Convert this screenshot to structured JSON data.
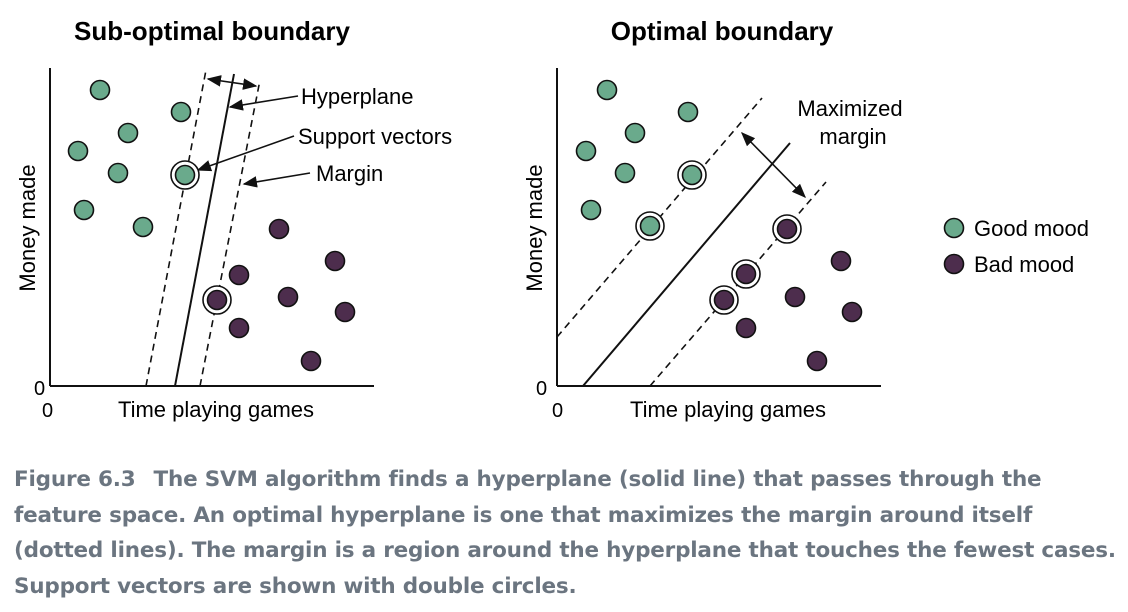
{
  "left_panel": {
    "title": "Sub-optimal boundary",
    "ylabel": "Money made",
    "xlabel": "Time playing games",
    "origin_x": "0",
    "origin_y": "0",
    "annotations": {
      "hyperplane": "Hyperplane",
      "support_vectors": "Support vectors",
      "margin": "Margin"
    }
  },
  "right_panel": {
    "title": "Optimal boundary",
    "ylabel": "Money made",
    "xlabel": "Time playing games",
    "origin_x": "0",
    "origin_y": "0",
    "annotations": {
      "margin_line1": "Maximized",
      "margin_line2": "margin"
    }
  },
  "legend": {
    "items": [
      {
        "label": "Good mood",
        "color": "#6aaa8c"
      },
      {
        "label": "Bad mood",
        "color": "#4d2d4d"
      }
    ]
  },
  "caption": {
    "figure_number": "Figure 6.3",
    "text": "The SVM algorithm finds a hyperplane (solid line) that passes through the feature space. An optimal hyperplane is one that maximizes the margin around itself (dotted lines). The margin is a region around the hyperplane that touches the fewest cases. Support vectors are shown with double circles."
  },
  "colors": {
    "good": "#6aaa8c",
    "bad": "#4d2d4d",
    "line": "#111111",
    "caption": "#6b7580"
  }
}
